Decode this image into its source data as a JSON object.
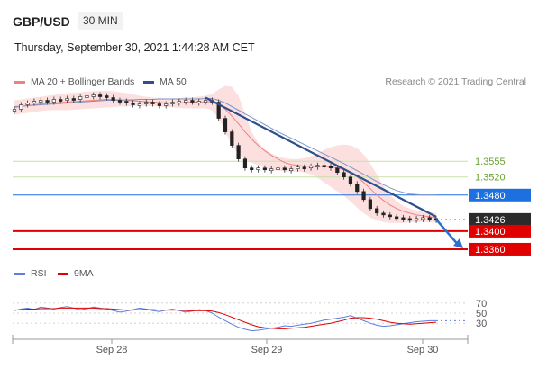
{
  "header": {
    "symbol": "GBP/USD",
    "timeframe": "30 MIN",
    "datetime": "Thursday, September 30, 2021 1:44:28 AM CET",
    "credit": "Research © 2021 Trading Central"
  },
  "legend_main": [
    {
      "label": "MA 20 + Bollinger Bands",
      "color": "#f08080"
    },
    {
      "label": "MA 50",
      "color": "#2d4f8c"
    }
  ],
  "legend_rsi": [
    {
      "label": "RSI",
      "color": "#5b7fdb"
    },
    {
      "label": "9MA",
      "color": "#e00000"
    }
  ],
  "chart_data": [
    {
      "type": "line",
      "title": "GBP/USD",
      "x_ticks": [
        "Sep 28",
        "Sep 29",
        "Sep 30"
      ],
      "ylim": [
        1.333,
        1.3705
      ],
      "levels": [
        {
          "value": 1.3555,
          "label": "1.3555",
          "style": "resistance",
          "color": "#7cb342"
        },
        {
          "value": 1.352,
          "label": "1.3520",
          "style": "resistance",
          "color": "#7cb342"
        },
        {
          "value": 1.348,
          "label": "1.3480",
          "style": "pivot",
          "color": "#1e6fe0"
        },
        {
          "value": 1.3426,
          "label": "1.3426",
          "style": "last-price",
          "color": "#333333"
        },
        {
          "value": 1.34,
          "label": "1.3400",
          "style": "support",
          "color": "#e00000"
        },
        {
          "value": 1.336,
          "label": "1.3360",
          "style": "support",
          "color": "#e00000"
        }
      ],
      "series": [
        {
          "name": "Price",
          "values": [
            1.367,
            1.368,
            1.3684,
            1.3688,
            1.369,
            1.3686,
            1.3692,
            1.369,
            1.3694,
            1.3692,
            1.3698,
            1.37,
            1.3702,
            1.37,
            1.3696,
            1.369,
            1.3688,
            1.3684,
            1.368,
            1.3682,
            1.3686,
            1.3682,
            1.368,
            1.3682,
            1.3686,
            1.3688,
            1.369,
            1.3686,
            1.3688,
            1.369,
            1.3686,
            1.365,
            1.362,
            1.359,
            1.356,
            1.354,
            1.3538,
            1.354,
            1.3536,
            1.3538,
            1.354,
            1.3536,
            1.3538,
            1.3542,
            1.354,
            1.3544,
            1.3546,
            1.3544,
            1.354,
            1.353,
            1.352,
            1.3505,
            1.3488,
            1.347,
            1.345,
            1.344,
            1.3436,
            1.3432,
            1.343,
            1.3428,
            1.3426,
            1.3428,
            1.343,
            1.3428,
            1.3426
          ]
        },
        {
          "name": "MA 20",
          "values": [
            1.3674,
            1.3676,
            1.3678,
            1.368,
            1.3682,
            1.3683,
            1.3684,
            1.3685,
            1.3686,
            1.3687,
            1.3688,
            1.3689,
            1.369,
            1.3691,
            1.3692,
            1.3692,
            1.3691,
            1.369,
            1.3689,
            1.3688,
            1.3687,
            1.3686,
            1.3685,
            1.3684,
            1.3684,
            1.3684,
            1.3685,
            1.3686,
            1.3686,
            1.3687,
            1.3687,
            1.3682,
            1.367,
            1.3655,
            1.3638,
            1.362,
            1.3604,
            1.359,
            1.3578,
            1.3568,
            1.356,
            1.3552,
            1.3548,
            1.3546,
            1.3544,
            1.3544,
            1.3544,
            1.3544,
            1.3543,
            1.354,
            1.3536,
            1.353,
            1.352,
            1.3508,
            1.3494,
            1.348,
            1.3468,
            1.3458,
            1.345,
            1.3444,
            1.344,
            1.3436,
            1.3434,
            1.3432,
            1.343
          ]
        },
        {
          "name": "BB upper",
          "values": [
            1.369,
            1.3692,
            1.3694,
            1.3696,
            1.3698,
            1.37,
            1.3702,
            1.3704,
            1.3706,
            1.3707,
            1.3708,
            1.3709,
            1.371,
            1.3711,
            1.3711,
            1.371,
            1.3708,
            1.3706,
            1.3703,
            1.37,
            1.3698,
            1.3696,
            1.3695,
            1.3694,
            1.3694,
            1.3695,
            1.3696,
            1.3697,
            1.3698,
            1.37,
            1.3704,
            1.3714,
            1.3722,
            1.372,
            1.37,
            1.366,
            1.362,
            1.3596,
            1.3582,
            1.3572,
            1.3566,
            1.3562,
            1.356,
            1.356,
            1.3562,
            1.3566,
            1.3572,
            1.358,
            1.3586,
            1.359,
            1.3592,
            1.359,
            1.3584,
            1.357,
            1.355,
            1.3526,
            1.35,
            1.348,
            1.3466,
            1.3456,
            1.345,
            1.3446,
            1.3444,
            1.3442,
            1.344
          ]
        },
        {
          "name": "BB lower",
          "values": [
            1.3658,
            1.366,
            1.3662,
            1.3664,
            1.3666,
            1.3668,
            1.3668,
            1.3668,
            1.3668,
            1.3669,
            1.367,
            1.3671,
            1.3672,
            1.3673,
            1.3674,
            1.3675,
            1.3676,
            1.3676,
            1.3677,
            1.3677,
            1.3677,
            1.3677,
            1.3676,
            1.3675,
            1.3674,
            1.3673,
            1.3672,
            1.3672,
            1.3672,
            1.3672,
            1.3668,
            1.365,
            1.362,
            1.359,
            1.357,
            1.356,
            1.3552,
            1.3546,
            1.354,
            1.3536,
            1.3534,
            1.3532,
            1.3532,
            1.3532,
            1.353,
            1.3526,
            1.3518,
            1.3508,
            1.3498,
            1.3488,
            1.3478,
            1.3466,
            1.3452,
            1.344,
            1.343,
            1.3424,
            1.342,
            1.3418,
            1.3418,
            1.3418,
            1.342,
            1.342,
            1.342,
            1.342,
            1.342
          ]
        },
        {
          "name": "MA 50",
          "values": [
            1.3676,
            1.3677,
            1.3678,
            1.3679,
            1.368,
            1.3681,
            1.3682,
            1.3683,
            1.3684,
            1.3685,
            1.3686,
            1.3687,
            1.3688,
            1.3689,
            1.369,
            1.369,
            1.369,
            1.3691,
            1.3691,
            1.3692,
            1.3692,
            1.3692,
            1.3693,
            1.3693,
            1.3693,
            1.3693,
            1.3693,
            1.3693,
            1.3693,
            1.3694,
            1.3694,
            1.369,
            1.3684,
            1.3676,
            1.3668,
            1.366,
            1.3652,
            1.3644,
            1.3636,
            1.3628,
            1.362,
            1.3613,
            1.3606,
            1.3599,
            1.3592,
            1.3585,
            1.3578,
            1.3571,
            1.3564,
            1.3557,
            1.355,
            1.3542,
            1.3534,
            1.3526,
            1.3518,
            1.351,
            1.3503,
            1.3496,
            1.349,
            1.3486,
            1.3482,
            1.3481,
            1.348,
            1.348,
            1.348
          ]
        }
      ]
    },
    {
      "type": "line",
      "title": "RSI",
      "y_ticks": [
        70,
        50,
        30
      ],
      "ylim": [
        0,
        100
      ],
      "series": [
        {
          "name": "RSI",
          "values": [
            55,
            58,
            60,
            57,
            62,
            60,
            58,
            61,
            63,
            60,
            57,
            59,
            62,
            60,
            58,
            55,
            52,
            54,
            57,
            60,
            58,
            55,
            53,
            56,
            58,
            55,
            52,
            54,
            57,
            55,
            50,
            42,
            35,
            28,
            22,
            18,
            15,
            16,
            18,
            20,
            22,
            25,
            24,
            26,
            28,
            30,
            33,
            36,
            38,
            40,
            42,
            45,
            40,
            35,
            30,
            26,
            24,
            25,
            27,
            29,
            31,
            33,
            34,
            35,
            35
          ]
        },
        {
          "name": "9MA",
          "values": [
            56,
            57,
            58,
            58,
            59,
            59,
            59,
            60,
            60,
            60,
            60,
            60,
            60,
            59,
            59,
            58,
            57,
            56,
            56,
            57,
            57,
            57,
            56,
            56,
            56,
            56,
            55,
            55,
            55,
            55,
            54,
            51,
            47,
            42,
            37,
            32,
            27,
            23,
            21,
            20,
            19,
            19,
            20,
            21,
            22,
            24,
            26,
            28,
            30,
            33,
            36,
            40,
            41,
            41,
            40,
            38,
            35,
            32,
            30,
            29,
            28,
            29,
            30,
            31,
            32
          ]
        }
      ]
    }
  ]
}
